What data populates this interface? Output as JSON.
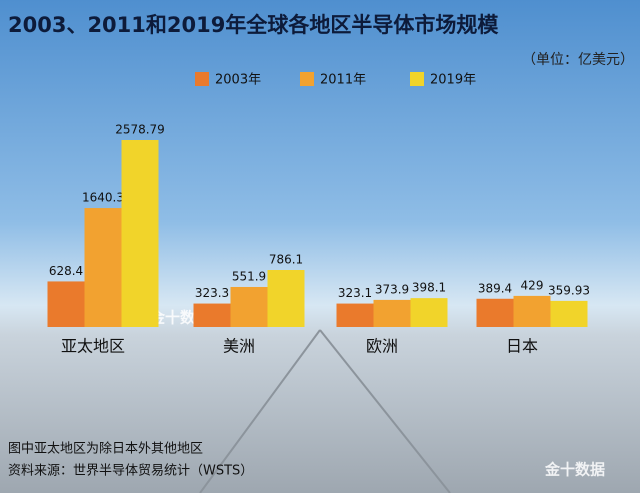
{
  "chart_data": {
    "type": "bar",
    "title": "2003、2011和2019年全球各地区半导体市场规模",
    "subtitle": "（单位：亿美元）",
    "categories": [
      "亚太地区",
      "美洲",
      "欧洲",
      "日本"
    ],
    "series": [
      {
        "name": "2003年",
        "color": "#ea7a2c",
        "values": [
          628.4,
          323.3,
          323.1,
          389.4
        ]
      },
      {
        "name": "2011年",
        "color": "#f2a230",
        "values": [
          1640.3,
          551.9,
          373.9,
          429
        ]
      },
      {
        "name": "2019年",
        "color": "#f1d42a",
        "values": [
          2578.79,
          786.1,
          398.1,
          359.93
        ]
      }
    ],
    "notes": [
      "图中亚太地区为除日本外其他地区",
      "资料来源：世界半导体贸易统计（WSTS）"
    ],
    "watermark": "金十数据"
  }
}
